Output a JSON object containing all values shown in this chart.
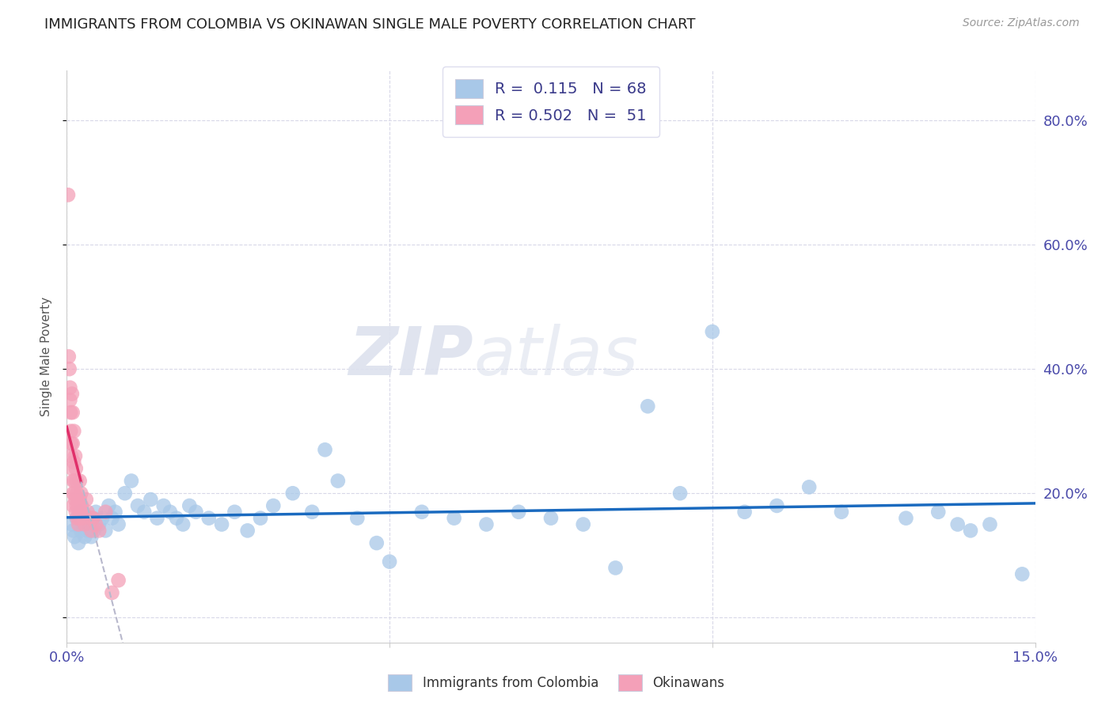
{
  "title": "IMMIGRANTS FROM COLOMBIA VS OKINAWAN SINGLE MALE POVERTY CORRELATION CHART",
  "source": "Source: ZipAtlas.com",
  "ylabel": "Single Male Poverty",
  "xmin": 0.0,
  "xmax": 0.15,
  "ymin": -0.04,
  "ymax": 0.88,
  "colombia_R": 0.115,
  "colombia_N": 68,
  "okinawa_R": 0.502,
  "okinawa_N": 51,
  "colombia_color": "#a8c8e8",
  "colombia_line_color": "#1a6abf",
  "okinawa_color": "#f4a0b8",
  "okinawa_line_color": "#e0306a",
  "background_color": "#ffffff",
  "grid_color": "#d8d8e8",
  "colombia_x": [
    0.0008,
    0.001,
    0.0012,
    0.0015,
    0.0018,
    0.002,
    0.0022,
    0.0025,
    0.0028,
    0.003,
    0.0032,
    0.0035,
    0.0038,
    0.004,
    0.0042,
    0.0045,
    0.005,
    0.0055,
    0.006,
    0.0065,
    0.007,
    0.0075,
    0.008,
    0.009,
    0.01,
    0.011,
    0.012,
    0.013,
    0.014,
    0.015,
    0.016,
    0.017,
    0.018,
    0.019,
    0.02,
    0.022,
    0.024,
    0.026,
    0.028,
    0.03,
    0.032,
    0.035,
    0.038,
    0.04,
    0.042,
    0.045,
    0.048,
    0.05,
    0.055,
    0.06,
    0.065,
    0.07,
    0.075,
    0.08,
    0.085,
    0.09,
    0.095,
    0.1,
    0.105,
    0.11,
    0.115,
    0.12,
    0.13,
    0.135,
    0.138,
    0.14,
    0.143,
    0.148
  ],
  "colombia_y": [
    0.15,
    0.14,
    0.13,
    0.16,
    0.12,
    0.17,
    0.14,
    0.15,
    0.13,
    0.16,
    0.14,
    0.15,
    0.13,
    0.16,
    0.14,
    0.17,
    0.15,
    0.16,
    0.14,
    0.18,
    0.16,
    0.17,
    0.15,
    0.2,
    0.22,
    0.18,
    0.17,
    0.19,
    0.16,
    0.18,
    0.17,
    0.16,
    0.15,
    0.18,
    0.17,
    0.16,
    0.15,
    0.17,
    0.14,
    0.16,
    0.18,
    0.2,
    0.17,
    0.27,
    0.22,
    0.16,
    0.12,
    0.09,
    0.17,
    0.16,
    0.15,
    0.17,
    0.16,
    0.15,
    0.08,
    0.34,
    0.2,
    0.46,
    0.17,
    0.18,
    0.21,
    0.17,
    0.16,
    0.17,
    0.15,
    0.14,
    0.15,
    0.07
  ],
  "okinawa_x": [
    0.0002,
    0.0003,
    0.0004,
    0.0005,
    0.0005,
    0.0006,
    0.0006,
    0.0007,
    0.0007,
    0.0008,
    0.0008,
    0.0009,
    0.0009,
    0.001,
    0.001,
    0.001,
    0.0011,
    0.0011,
    0.0012,
    0.0012,
    0.0013,
    0.0013,
    0.0014,
    0.0014,
    0.0015,
    0.0015,
    0.0016,
    0.0016,
    0.0017,
    0.0018,
    0.0018,
    0.0019,
    0.002,
    0.002,
    0.0021,
    0.0022,
    0.0023,
    0.0025,
    0.0026,
    0.0028,
    0.003,
    0.0032,
    0.0035,
    0.0038,
    0.004,
    0.0045,
    0.005,
    0.006,
    0.007,
    0.008,
    0.004
  ],
  "okinawa_y": [
    0.68,
    0.42,
    0.4,
    0.37,
    0.35,
    0.33,
    0.3,
    0.28,
    0.26,
    0.36,
    0.24,
    0.33,
    0.28,
    0.22,
    0.2,
    0.18,
    0.3,
    0.25,
    0.22,
    0.2,
    0.26,
    0.19,
    0.24,
    0.17,
    0.22,
    0.18,
    0.2,
    0.16,
    0.19,
    0.18,
    0.15,
    0.16,
    0.22,
    0.19,
    0.17,
    0.2,
    0.18,
    0.17,
    0.16,
    0.15,
    0.19,
    0.17,
    0.16,
    0.14,
    0.16,
    0.15,
    0.14,
    0.17,
    0.04,
    0.06,
    0.16
  ],
  "okinawa_solid_xend": 0.0022,
  "okinawa_dashed_xend": 0.03,
  "ytick_values": [
    0.0,
    0.2,
    0.4,
    0.6,
    0.8
  ],
  "ytick_labels": [
    "",
    "20.0%",
    "40.0%",
    "60.0%",
    "80.0%"
  ],
  "xtick_values": [
    0.0,
    0.05,
    0.1,
    0.15
  ],
  "xtick_labels": [
    "0.0%",
    "",
    "",
    "15.0%"
  ]
}
